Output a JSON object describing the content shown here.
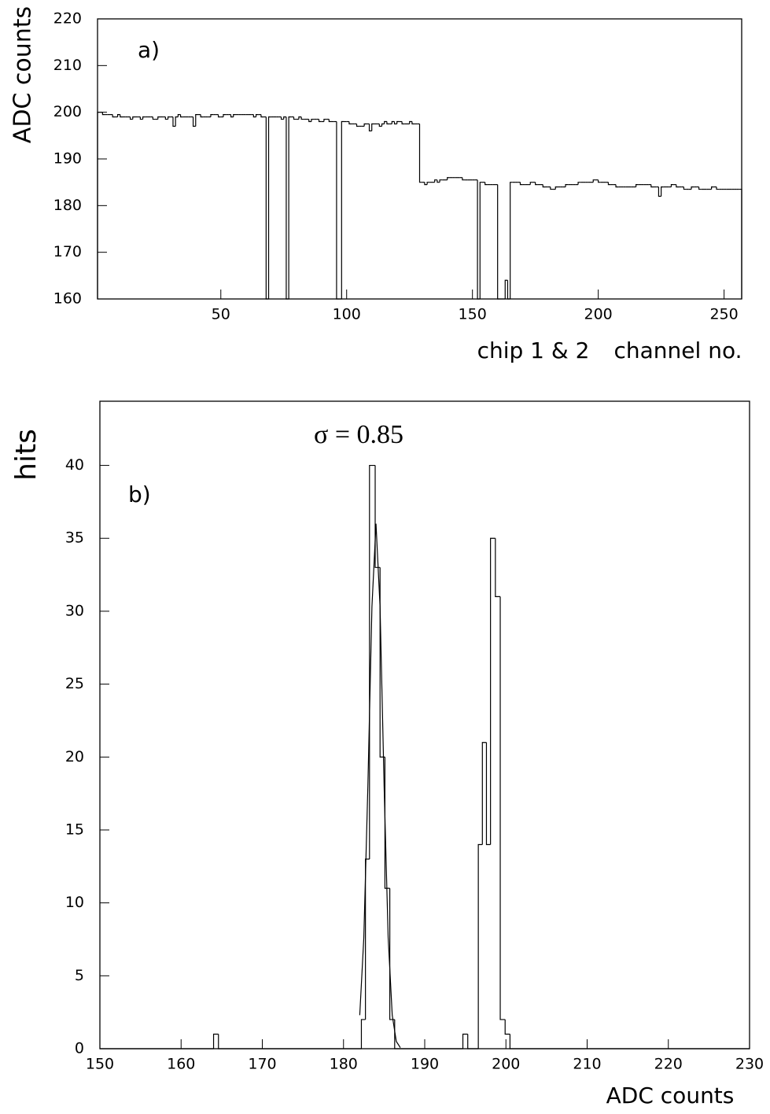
{
  "chart_data": [
    {
      "type": "histogram",
      "ylabel": "ADC counts",
      "xlabel": "channel no.",
      "annotations": [
        "a)",
        "chip 1 & 2"
      ],
      "xlim": [
        1,
        257
      ],
      "ylim": [
        160,
        220
      ],
      "xticks": [
        50,
        100,
        150,
        200,
        250
      ],
      "yticks": [
        160,
        170,
        180,
        190,
        200,
        210,
        220
      ],
      "color": "#000000",
      "bins": [
        1,
        2,
        3,
        4,
        5,
        6,
        7,
        8,
        9,
        10,
        11,
        12,
        13,
        14,
        15,
        16,
        17,
        18,
        19,
        20,
        21,
        22,
        23,
        24,
        25,
        26,
        27,
        28,
        29,
        30,
        31,
        32,
        33,
        34,
        35,
        36,
        37,
        38,
        39,
        40,
        41,
        42,
        43,
        44,
        45,
        46,
        47,
        48,
        49,
        50,
        51,
        52,
        53,
        54,
        55,
        56,
        57,
        58,
        59,
        60,
        61,
        62,
        63,
        64,
        65,
        66,
        67,
        68,
        69,
        70,
        71,
        72,
        73,
        74,
        75,
        76,
        77,
        78,
        79,
        80,
        81,
        82,
        83,
        84,
        85,
        86,
        87,
        88,
        89,
        90,
        91,
        92,
        93,
        94,
        95,
        96,
        97,
        98,
        99,
        100,
        101,
        102,
        103,
        104,
        105,
        106,
        107,
        108,
        109,
        110,
        111,
        112,
        113,
        114,
        115,
        116,
        117,
        118,
        119,
        120,
        121,
        122,
        123,
        124,
        125,
        126,
        127,
        128,
        129,
        130,
        131,
        132,
        133,
        134,
        135,
        136,
        137,
        138,
        139,
        140,
        141,
        142,
        143,
        144,
        145,
        146,
        147,
        148,
        149,
        150,
        151,
        152,
        153,
        154,
        155,
        156,
        157,
        158,
        159,
        160,
        161,
        162,
        163,
        164,
        165,
        166,
        167,
        168,
        169,
        170,
        171,
        172,
        173,
        174,
        175,
        176,
        177,
        178,
        179,
        180,
        181,
        182,
        183,
        184,
        185,
        186,
        187,
        188,
        189,
        190,
        191,
        192,
        193,
        194,
        195,
        196,
        197,
        198,
        199,
        200,
        201,
        202,
        203,
        204,
        205,
        206,
        207,
        208,
        209,
        210,
        211,
        212,
        213,
        214,
        215,
        216,
        217,
        218,
        219,
        220,
        221,
        222,
        223,
        224,
        225,
        226,
        227,
        228,
        229,
        230,
        231,
        232,
        233,
        234,
        235,
        236,
        237,
        238,
        239,
        240,
        241,
        242,
        243,
        244,
        245,
        246,
        247,
        248,
        249,
        250,
        251,
        252,
        253,
        254,
        255,
        256,
        257
      ],
      "values": [
        200,
        200,
        199.5,
        199.5,
        199.5,
        199.5,
        199,
        199,
        199.5,
        199,
        199,
        199,
        199,
        198.5,
        199,
        199,
        199,
        198.5,
        199,
        199,
        199,
        199,
        198.5,
        198.5,
        199,
        199,
        199,
        198.5,
        199,
        199,
        197,
        199,
        199.5,
        199,
        199,
        199,
        199,
        199,
        197,
        199.5,
        199.5,
        199,
        199,
        199,
        199,
        199.5,
        199.5,
        199.5,
        199,
        199,
        199.5,
        199.5,
        199.5,
        199,
        199.5,
        199.5,
        199.5,
        199.5,
        199.5,
        199.5,
        199.5,
        199.5,
        199,
        199.5,
        199.5,
        199,
        199,
        160,
        199,
        199,
        199,
        199,
        199,
        198.5,
        199,
        160,
        199,
        199,
        198.5,
        198.5,
        199,
        198.5,
        198.5,
        198.5,
        198,
        198.5,
        198.5,
        198.5,
        198,
        198,
        198.5,
        198.5,
        198,
        198,
        198,
        160,
        160,
        198,
        198,
        198,
        197.5,
        197.5,
        197.5,
        197,
        197,
        197,
        197.5,
        197.5,
        196,
        197.5,
        197.5,
        197.5,
        197,
        197.5,
        198,
        197.5,
        197.5,
        198,
        197.5,
        198,
        198,
        197.5,
        197.5,
        197.5,
        198,
        197.5,
        197.5,
        197.5,
        185,
        185,
        184.5,
        185,
        185,
        185,
        185.5,
        185,
        185.5,
        185.5,
        185.5,
        186,
        186,
        186,
        186,
        186,
        186,
        185.5,
        185.5,
        185.5,
        185.5,
        185.5,
        185.5,
        160,
        185,
        185,
        184.5,
        184.5,
        184.5,
        184.5,
        184.5,
        160,
        160,
        160,
        164,
        160,
        185,
        185,
        185,
        185,
        184.5,
        184.5,
        184.5,
        184.5,
        185,
        185,
        184.5,
        184.5,
        184.5,
        184,
        184,
        184,
        183.5,
        183.5,
        184,
        184,
        184,
        184,
        184.5,
        184.5,
        184.5,
        184.5,
        184.5,
        185,
        185,
        185,
        185,
        185,
        185,
        185.5,
        185.5,
        185,
        185,
        185,
        185,
        184.5,
        184.5,
        184.5,
        184,
        184,
        184,
        184,
        184,
        184,
        184,
        184,
        184.5,
        184.5,
        184.5,
        184.5,
        184.5,
        184.5,
        184,
        184,
        184,
        182,
        184,
        184,
        184,
        184,
        184.5,
        184.5,
        184,
        184,
        184,
        183.5,
        183.5,
        183.5,
        184,
        184,
        184,
        183.5,
        183.5,
        183.5,
        183.5,
        183.5,
        184,
        184,
        183.5,
        183.5,
        183.5,
        183.5,
        183.5,
        183.5,
        183.5,
        183.5,
        183.5,
        183.5
      ]
    },
    {
      "type": "histogram",
      "ylabel": "hits",
      "xlabel": "ADC counts",
      "annotations": [
        "b)",
        "σ = 0.85"
      ],
      "xlim": [
        150,
        230
      ],
      "ylim": [
        0,
        44.4
      ],
      "xticks": [
        150,
        160,
        170,
        180,
        190,
        200,
        210,
        220,
        230
      ],
      "yticks": [
        0,
        5,
        10,
        15,
        20,
        25,
        30,
        35,
        40
      ],
      "color": "#000000",
      "bins": [
        150,
        164,
        164.6,
        182.2,
        182.7,
        183.2,
        183.9,
        184.5,
        185.1,
        185.7,
        186.3,
        194.7,
        195.3,
        196.6,
        197.1,
        197.6,
        198.1,
        198.7,
        199.3,
        199.9,
        200.5,
        230
      ],
      "values": [
        0,
        1,
        0,
        2,
        13,
        40,
        33,
        20,
        11,
        2,
        0,
        1,
        0,
        14,
        21,
        14,
        35,
        31,
        2,
        1,
        0
      ],
      "fit": {
        "x": [
          182,
          182.5,
          183,
          183.5,
          184,
          184.5,
          185,
          185.5,
          186,
          186.5,
          187
        ],
        "values": [
          2.3,
          7.6,
          18,
          30.3,
          36,
          30.3,
          18,
          7.6,
          2.3,
          0.5,
          0.07
        ]
      }
    }
  ]
}
